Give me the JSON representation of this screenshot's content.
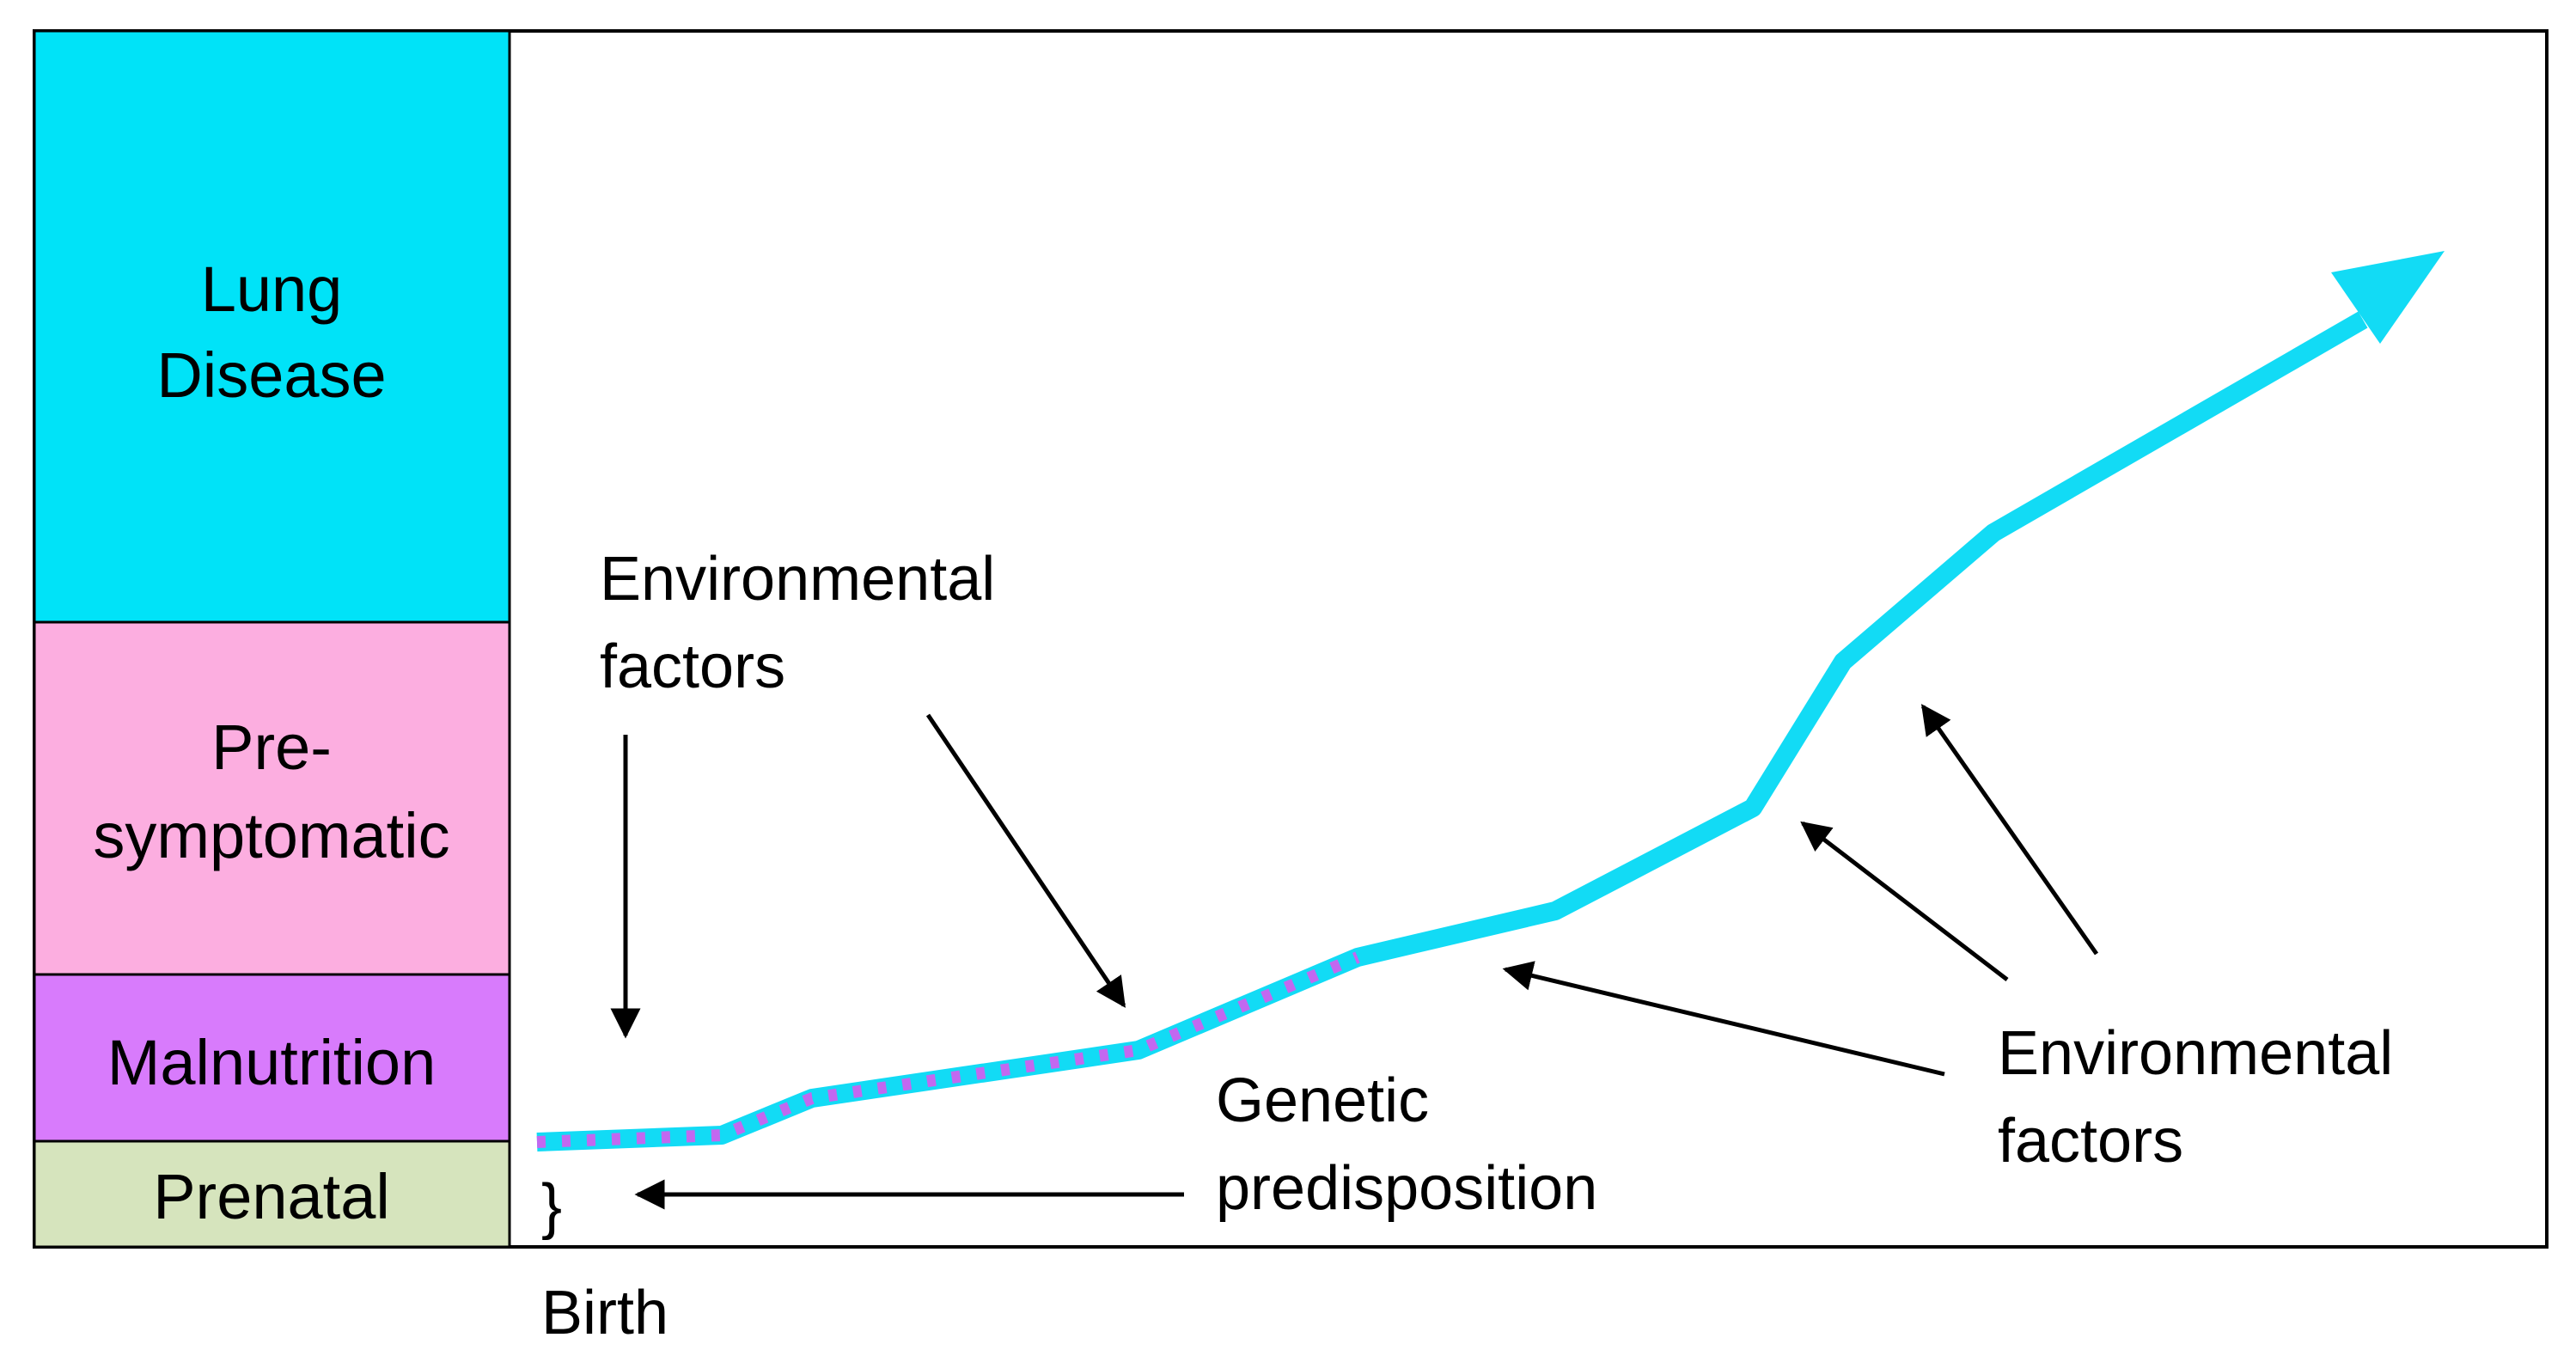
{
  "stages": [
    {
      "lines": [
        "Lung",
        "Disease"
      ],
      "color": "#00e3f8"
    },
    {
      "lines": [
        "Pre-",
        "symptomatic"
      ],
      "color": "#fcaee0"
    },
    {
      "lines": [
        "Malnutrition"
      ],
      "color": "#d87bfc"
    },
    {
      "lines": [
        "Prenatal"
      ],
      "color": "#d6e4bd"
    }
  ],
  "annotations": {
    "env_factors_left": [
      "Environmental",
      "factors"
    ],
    "env_factors_right": [
      "Environmental",
      "factors"
    ],
    "genetic": [
      "Genetic",
      "predisposition"
    ],
    "brace": "}",
    "birth": "Birth"
  },
  "trajectory": {
    "line_color": "#12dbf5",
    "overlay_color": "#c268f0"
  }
}
